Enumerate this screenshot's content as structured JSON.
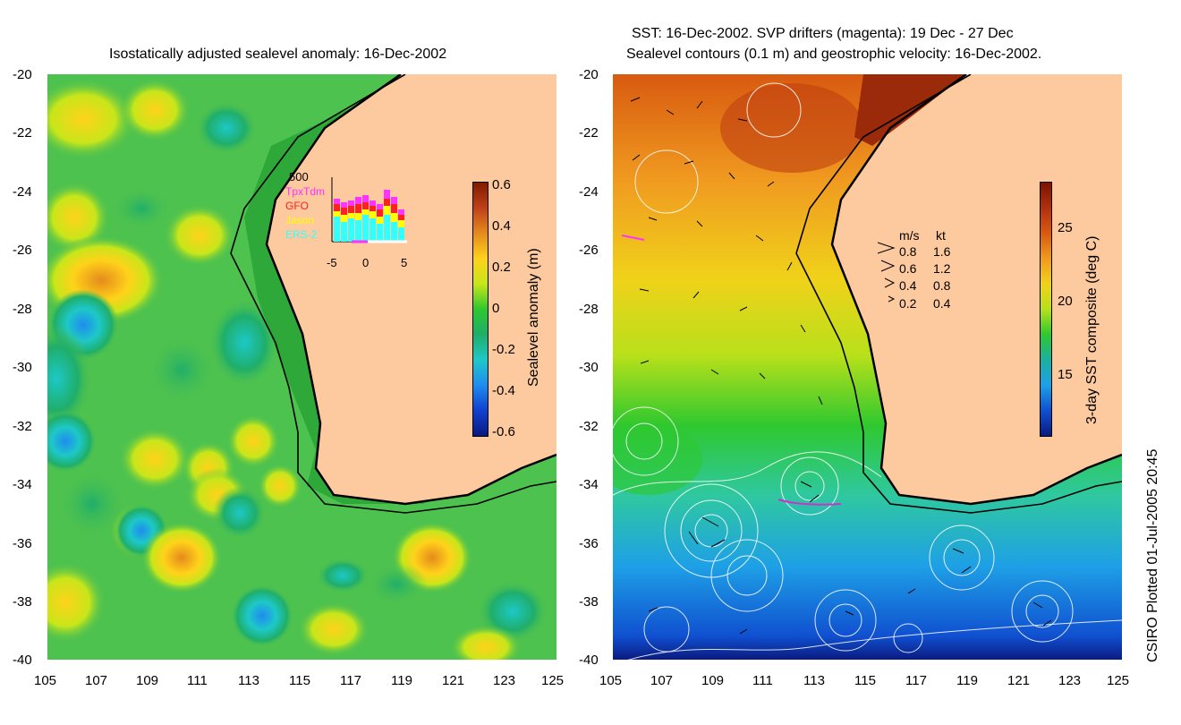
{
  "left_panel": {
    "title": "Isostatically adjusted sealevel anomaly: 16-Dec-2002",
    "colorbar": {
      "label": "Sealevel anomaly (m)",
      "ticks": [
        "0.6",
        "0.4",
        "0.2",
        "0",
        "-0.2",
        "-0.4",
        "-0.6"
      ],
      "colors": [
        "#7f1a00",
        "#c0401a",
        "#e58a1c",
        "#ffd21a",
        "#c8e61a",
        "#2fc82f",
        "#1fae6a",
        "#1ec8c8",
        "#1e8cf0",
        "#1040d0",
        "#0a1a80"
      ]
    },
    "inset": {
      "max_label": "500",
      "satellites": [
        {
          "name": "TpxTdm",
          "color": "#ff33ff"
        },
        {
          "name": "GFO",
          "color": "#ff2020"
        },
        {
          "name": "Jason",
          "color": "#ffff00"
        },
        {
          "name": "ERS-2",
          "color": "#33ffff"
        }
      ],
      "x_ticks": [
        "-5",
        "0",
        "5"
      ]
    }
  },
  "right_panel": {
    "title_line1": "SST: 16-Dec-2002. SVP drifters (magenta): 19 Dec - 27 Dec",
    "title_line2": "Sealevel contours (0.1 m) and geostrophic velocity: 16-Dec-2002.",
    "colorbar": {
      "label": "3-day SST composite (deg C)",
      "ticks": [
        "25",
        "20",
        "15"
      ],
      "colors": [
        "#7a1400",
        "#b03010",
        "#d85a10",
        "#f09a20",
        "#f0d21a",
        "#b8e01a",
        "#2fc82f",
        "#1ab0a0",
        "#1ea0e6",
        "#1050d0",
        "#0a1a80"
      ]
    },
    "speed_legend": {
      "header_ms": "m/s",
      "header_kt": "kt",
      "rows": [
        {
          "ms": "0.8",
          "kt": "1.6"
        },
        {
          "ms": "0.6",
          "kt": "1.2"
        },
        {
          "ms": "0.4",
          "kt": "0.8"
        },
        {
          "ms": "0.2",
          "kt": "0.4"
        }
      ]
    }
  },
  "axes": {
    "y_ticks": [
      "-20",
      "-22",
      "-24",
      "-26",
      "-28",
      "-30",
      "-32",
      "-34",
      "-36",
      "-38",
      "-40"
    ],
    "x_ticks": [
      "105",
      "107",
      "109",
      "111",
      "113",
      "115",
      "117",
      "119",
      "121",
      "123",
      "125"
    ]
  },
  "colors": {
    "land": "#fdc99e",
    "ocean_left": "#4ec24e",
    "ocean_right": "#3cc850"
  },
  "credit": "CSIRO Plotted 01-Jul-2005 20:45"
}
